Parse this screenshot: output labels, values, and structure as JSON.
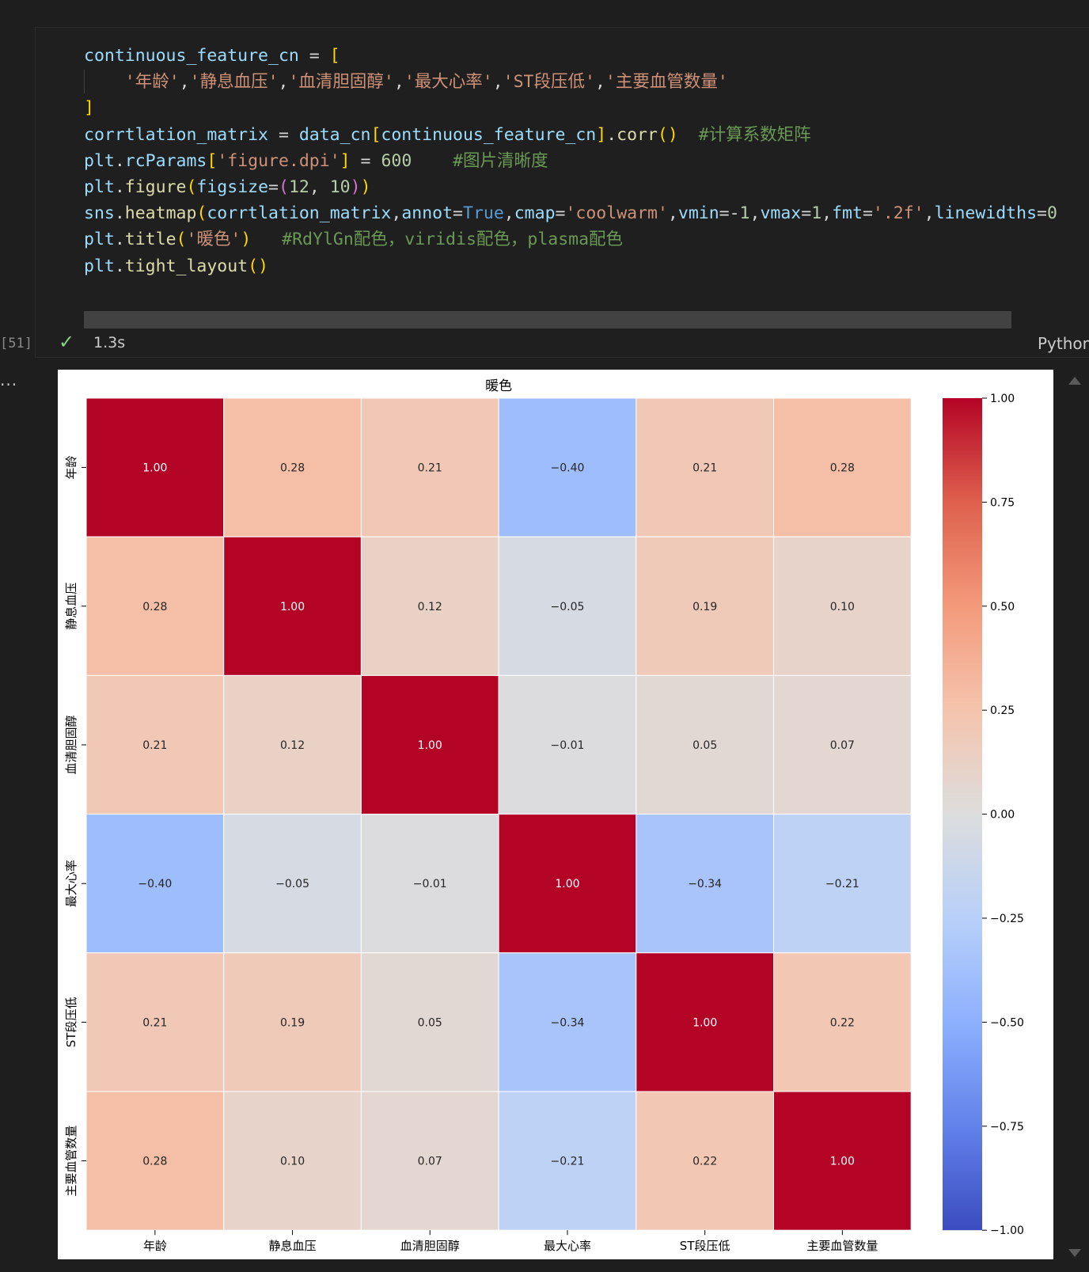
{
  "code_lines": [
    [
      [
        "t-var",
        "continuous_feature_cn"
      ],
      [
        "t-op",
        " = "
      ],
      [
        "t-br1",
        "["
      ]
    ],
    [
      [
        "t-op",
        "    "
      ],
      [
        "t-str",
        "'年龄'"
      ],
      [
        "t-op",
        ","
      ],
      [
        "t-str",
        "'静息血压'"
      ],
      [
        "t-op",
        ","
      ],
      [
        "t-str",
        "'血清胆固醇'"
      ],
      [
        "t-op",
        ","
      ],
      [
        "t-str",
        "'最大心率'"
      ],
      [
        "t-op",
        ","
      ],
      [
        "t-str",
        "'ST段压低'"
      ],
      [
        "t-op",
        ","
      ],
      [
        "t-str",
        "'主要血管数量'"
      ]
    ],
    [
      [
        "t-br1",
        "]"
      ]
    ],
    [
      [
        "t-var",
        "corrtlation_matrix"
      ],
      [
        "t-op",
        " = "
      ],
      [
        "t-var",
        "data_cn"
      ],
      [
        "t-br1",
        "["
      ],
      [
        "t-var",
        "continuous_feature_cn"
      ],
      [
        "t-br1",
        "]"
      ],
      [
        "t-op",
        "."
      ],
      [
        "t-fn",
        "corr"
      ],
      [
        "t-br1",
        "()"
      ],
      [
        "t-op",
        "  "
      ],
      [
        "t-com",
        "#计算系数矩阵"
      ]
    ],
    [
      [
        "t-var",
        "plt"
      ],
      [
        "t-op",
        "."
      ],
      [
        "t-var",
        "rcParams"
      ],
      [
        "t-br1",
        "["
      ],
      [
        "t-str",
        "'figure.dpi'"
      ],
      [
        "t-br1",
        "]"
      ],
      [
        "t-op",
        " = "
      ],
      [
        "t-num",
        "600"
      ],
      [
        "t-op",
        "    "
      ],
      [
        "t-com",
        "#图片清晰度"
      ]
    ],
    [
      [
        "t-var",
        "plt"
      ],
      [
        "t-op",
        "."
      ],
      [
        "t-fn",
        "figure"
      ],
      [
        "t-br1",
        "("
      ],
      [
        "t-var",
        "figsize"
      ],
      [
        "t-op",
        "="
      ],
      [
        "t-br2",
        "("
      ],
      [
        "t-num",
        "12"
      ],
      [
        "t-op",
        ", "
      ],
      [
        "t-num",
        "10"
      ],
      [
        "t-br2",
        ")"
      ],
      [
        "t-br1",
        ")"
      ]
    ],
    [
      [
        "t-var",
        "sns"
      ],
      [
        "t-op",
        "."
      ],
      [
        "t-fn",
        "heatmap"
      ],
      [
        "t-br1",
        "("
      ],
      [
        "t-var",
        "corrtlation_matrix"
      ],
      [
        "t-op",
        ","
      ],
      [
        "t-var",
        "annot"
      ],
      [
        "t-op",
        "="
      ],
      [
        "t-kw",
        "True"
      ],
      [
        "t-op",
        ","
      ],
      [
        "t-var",
        "cmap"
      ],
      [
        "t-op",
        "="
      ],
      [
        "t-str",
        "'coolwarm'"
      ],
      [
        "t-op",
        ","
      ],
      [
        "t-var",
        "vmin"
      ],
      [
        "t-op",
        "=-"
      ],
      [
        "t-num",
        "1"
      ],
      [
        "t-op",
        ","
      ],
      [
        "t-var",
        "vmax"
      ],
      [
        "t-op",
        "="
      ],
      [
        "t-num",
        "1"
      ],
      [
        "t-op",
        ","
      ],
      [
        "t-var",
        "fmt"
      ],
      [
        "t-op",
        "="
      ],
      [
        "t-str",
        "'.2f'"
      ],
      [
        "t-op",
        ","
      ],
      [
        "t-var",
        "linewidths"
      ],
      [
        "t-op",
        "="
      ],
      [
        "t-num",
        "0"
      ]
    ],
    [
      [
        "t-var",
        "plt"
      ],
      [
        "t-op",
        "."
      ],
      [
        "t-fn",
        "title"
      ],
      [
        "t-br1",
        "("
      ],
      [
        "t-str",
        "'暖色'"
      ],
      [
        "t-br1",
        ")"
      ],
      [
        "t-op",
        "   "
      ],
      [
        "t-com",
        "#RdYlGn配色，viridis配色，plasma配色"
      ]
    ],
    [
      [
        "t-var",
        "plt"
      ],
      [
        "t-op",
        "."
      ],
      [
        "t-fn",
        "tight_layout"
      ],
      [
        "t-br1",
        "()"
      ]
    ]
  ],
  "cell_status": {
    "execution_count": "[51]",
    "duration": "1.3s",
    "language": "Python",
    "output_prefix": "..."
  },
  "chart_data": {
    "type": "heatmap",
    "title": "暖色",
    "categories": [
      "年龄",
      "静息血压",
      "血清胆固醇",
      "最大心率",
      "ST段压低",
      "主要血管数量"
    ],
    "values": [
      [
        1.0,
        0.28,
        0.21,
        -0.4,
        0.21,
        0.28
      ],
      [
        0.28,
        1.0,
        0.12,
        -0.05,
        0.19,
        0.1
      ],
      [
        0.21,
        0.12,
        1.0,
        -0.01,
        0.05,
        0.07
      ],
      [
        -0.4,
        -0.05,
        -0.01,
        1.0,
        -0.34,
        -0.21
      ],
      [
        0.21,
        0.19,
        0.05,
        -0.34,
        1.0,
        0.22
      ],
      [
        0.28,
        0.1,
        0.07,
        -0.21,
        0.22,
        1.0
      ]
    ],
    "cell_labels": [
      [
        "1.00",
        "0.28",
        "0.21",
        "−0.40",
        "0.21",
        "0.28"
      ],
      [
        "0.28",
        "1.00",
        "0.12",
        "−0.05",
        "0.19",
        "0.10"
      ],
      [
        "0.21",
        "0.12",
        "1.00",
        "−0.01",
        "0.05",
        "0.07"
      ],
      [
        "−0.40",
        "−0.05",
        "−0.01",
        "1.00",
        "−0.34",
        "−0.21"
      ],
      [
        "0.21",
        "0.19",
        "0.05",
        "−0.34",
        "1.00",
        "0.22"
      ],
      [
        "0.28",
        "0.10",
        "0.07",
        "−0.21",
        "0.22",
        "1.00"
      ]
    ],
    "vmin": -1,
    "vmax": 1,
    "colormap": "coolwarm",
    "colorbar_ticks": [
      1.0,
      0.75,
      0.5,
      0.25,
      0.0,
      -0.25,
      -0.5,
      -0.75,
      -1.0
    ],
    "colorbar_tick_labels": [
      "1.00",
      "0.75",
      "0.50",
      "0.25",
      "0.00",
      "−0.25",
      "−0.50",
      "−0.75",
      "−1.00"
    ],
    "colorbar_position": "right"
  }
}
